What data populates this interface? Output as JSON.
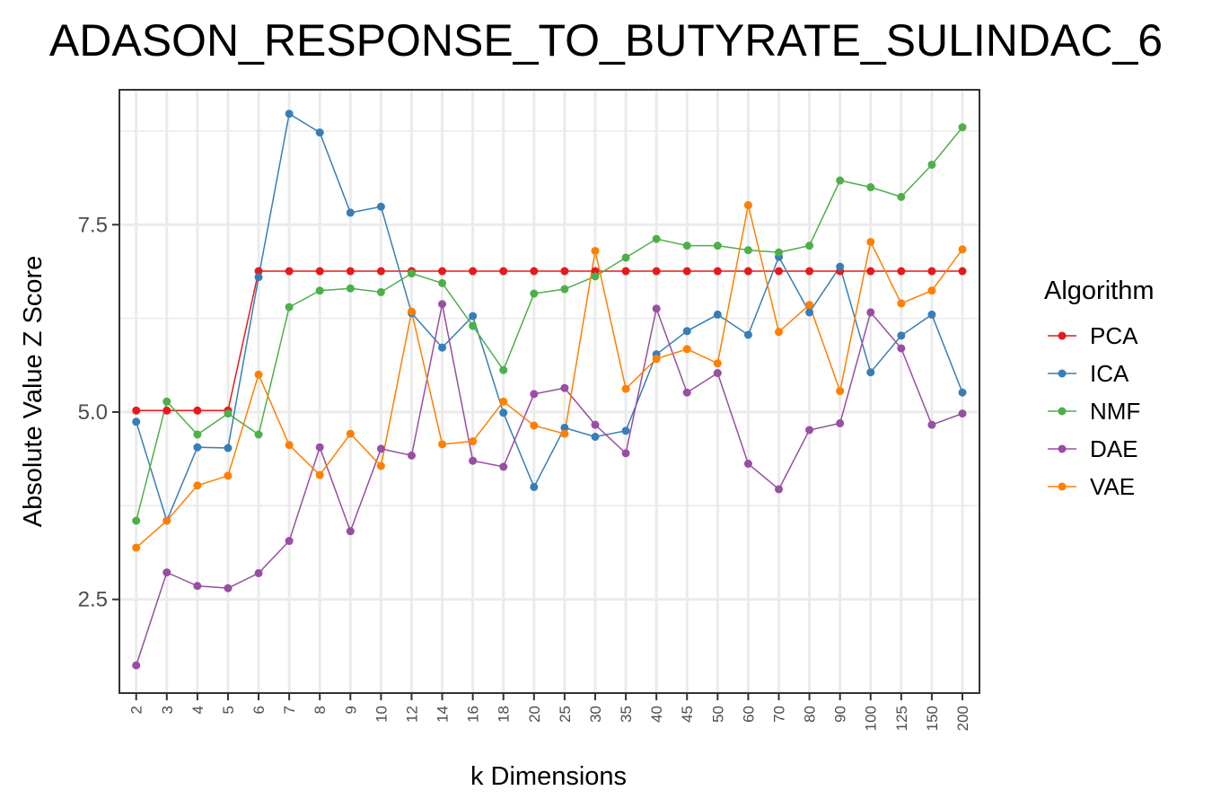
{
  "chart_data": {
    "type": "line",
    "title": "ADASON_RESPONSE_TO_BUTYRATE_SULINDAC_6",
    "xlabel": "k Dimensions",
    "ylabel": "Absolute Value Z Score",
    "categories": [
      "2",
      "3",
      "4",
      "5",
      "6",
      "7",
      "8",
      "9",
      "10",
      "12",
      "14",
      "16",
      "18",
      "20",
      "25",
      "30",
      "35",
      "40",
      "45",
      "50",
      "60",
      "70",
      "80",
      "90",
      "100",
      "125",
      "150",
      "200"
    ],
    "ylim": [
      1.25,
      9.3
    ],
    "yticks": [
      2.5,
      5.0,
      7.5
    ],
    "ytick_labels": [
      "2.5",
      "5.0",
      "7.5"
    ],
    "grid": true,
    "legend_title": "Algorithm",
    "legend_position": "right",
    "series": [
      {
        "name": "PCA",
        "color": "#e41a1c",
        "values": [
          5.02,
          5.02,
          5.02,
          5.02,
          6.88,
          6.88,
          6.88,
          6.88,
          6.88,
          6.88,
          6.88,
          6.88,
          6.88,
          6.88,
          6.88,
          6.88,
          6.88,
          6.88,
          6.88,
          6.88,
          6.88,
          6.88,
          6.88,
          6.88,
          6.88,
          6.88,
          6.88,
          6.88
        ]
      },
      {
        "name": "ICA",
        "color": "#377eb8",
        "values": [
          4.87,
          3.55,
          4.53,
          4.52,
          6.8,
          8.98,
          8.73,
          7.66,
          7.74,
          6.32,
          5.86,
          6.28,
          4.99,
          4.0,
          4.79,
          4.67,
          4.75,
          5.77,
          6.08,
          6.3,
          6.03,
          7.07,
          6.33,
          6.94,
          5.53,
          6.02,
          6.3,
          5.26
        ]
      },
      {
        "name": "NMF",
        "color": "#4daf4a",
        "values": [
          3.55,
          5.14,
          4.7,
          4.98,
          4.7,
          6.4,
          6.62,
          6.65,
          6.6,
          6.85,
          6.72,
          6.15,
          5.56,
          6.58,
          6.64,
          6.81,
          7.06,
          7.31,
          7.22,
          7.22,
          7.16,
          7.13,
          7.22,
          8.09,
          8.0,
          7.87,
          8.3,
          8.8
        ]
      },
      {
        "name": "DAE",
        "color": "#984ea3",
        "values": [
          1.62,
          2.86,
          2.68,
          2.65,
          2.85,
          3.28,
          4.53,
          3.41,
          4.51,
          4.42,
          6.44,
          4.35,
          4.27,
          5.24,
          5.32,
          4.83,
          4.45,
          6.38,
          5.26,
          5.52,
          4.31,
          3.97,
          4.76,
          4.85,
          6.33,
          5.85,
          4.83,
          4.98
        ]
      },
      {
        "name": "VAE",
        "color": "#ff7f00",
        "values": [
          3.19,
          3.55,
          4.02,
          4.15,
          5.5,
          4.56,
          4.16,
          4.71,
          4.28,
          6.34,
          4.57,
          4.61,
          5.14,
          4.82,
          4.71,
          7.15,
          5.31,
          5.71,
          5.84,
          5.65,
          7.76,
          6.07,
          6.43,
          5.28,
          7.27,
          6.45,
          6.62,
          7.17
        ]
      }
    ]
  }
}
